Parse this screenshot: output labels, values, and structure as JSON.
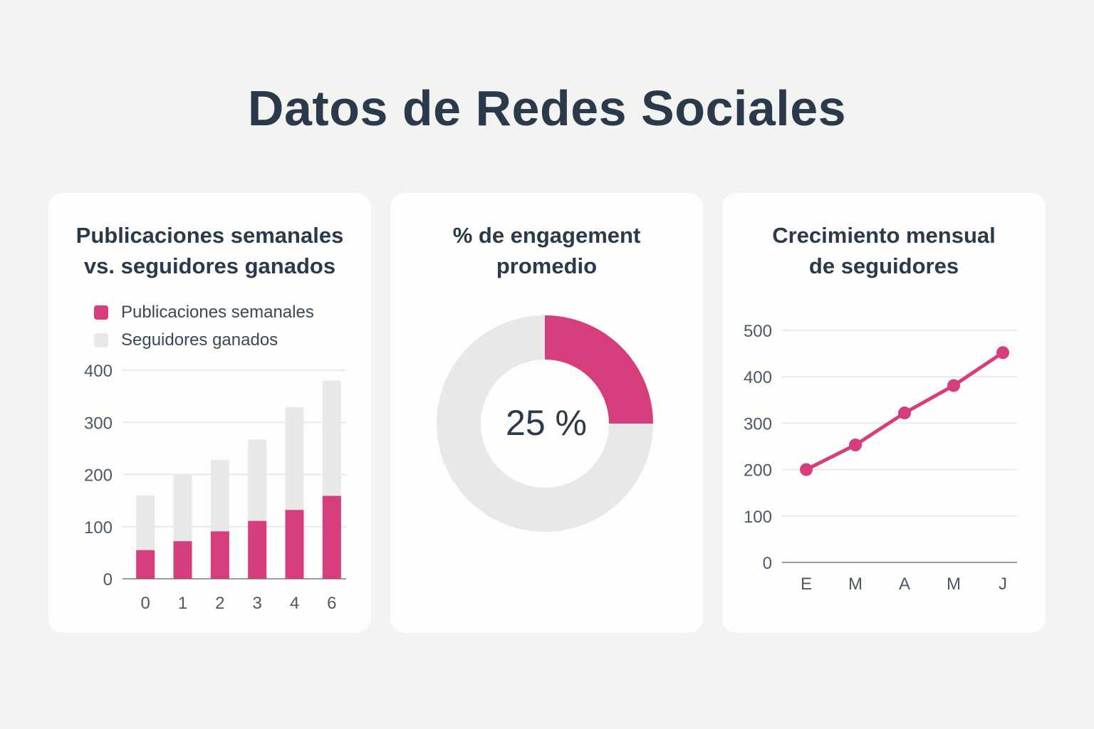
{
  "title": "Datos de Redes Sociales",
  "colors": {
    "accent": "#d63d7c",
    "muted": "#e8e8e6",
    "text": "#2b3a4a",
    "grid": "#e4e4e4",
    "axis": "#9a9a9a"
  },
  "chart_data": [
    {
      "type": "bar",
      "title_lines": [
        "Publicaciones semanales",
        "vs. seguidores ganados"
      ],
      "categories": [
        "0",
        "1",
        "2",
        "3",
        "4",
        "6"
      ],
      "series": [
        {
          "name": "Publicaciones semanales",
          "values": [
            55,
            72,
            91,
            111,
            132,
            159
          ]
        },
        {
          "name": "Seguidores ganados",
          "values": [
            160,
            201,
            228,
            267,
            329,
            380
          ]
        }
      ],
      "yticks": [
        0,
        100,
        200,
        300,
        400
      ],
      "ylim": [
        0,
        400
      ],
      "grid": true,
      "legend": "top-left"
    },
    {
      "type": "pie",
      "title_lines": [
        "% de engagement",
        "promedio"
      ],
      "values": [
        25,
        75
      ],
      "center_label": "25 %"
    },
    {
      "type": "line",
      "title_lines": [
        "Crecimiento mensual",
        "de seguidores"
      ],
      "categories": [
        "E",
        "M",
        "A",
        "M",
        "J"
      ],
      "series": [
        {
          "values": [
            200,
            253,
            322,
            381,
            452
          ]
        }
      ],
      "yticks": [
        0,
        100,
        200,
        300,
        400,
        500
      ],
      "ylim": [
        0,
        500
      ],
      "grid": true
    }
  ]
}
